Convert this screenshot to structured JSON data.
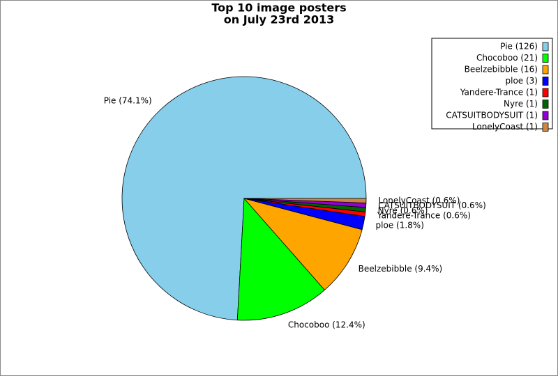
{
  "chart_data": {
    "type": "pie",
    "title": [
      "Top 10 image posters",
      "on July 23rd 2013"
    ],
    "labels": [
      "Pie (126)",
      "Chocoboo (21)",
      "Beelzebibble (16)",
      "ploe (3)",
      "Yandere-Trance (1)",
      "Nyre (1)",
      "CATSUITBODYSUIT (1)",
      "LonelyCoast (1)"
    ],
    "values": [
      126,
      21,
      16,
      3,
      1,
      1,
      1,
      1
    ],
    "percent_labels": [
      "Pie (74.1%)",
      "Chocoboo (12.4%)",
      "Beelzebibble (9.4%)",
      "ploe (1.8%)",
      "Yandere-Trance (0.6%)",
      "Nyre (0.6%)",
      "CATSUITBODYSUIT (0.6%)",
      "LonelyCoast (0.6%)"
    ],
    "colors": [
      "#87ceeb",
      "#00ff00",
      "#ffa500",
      "#0000ff",
      "#ff0000",
      "#006400",
      "#9400d3",
      "#cd853f"
    ],
    "legend": "upper right"
  }
}
